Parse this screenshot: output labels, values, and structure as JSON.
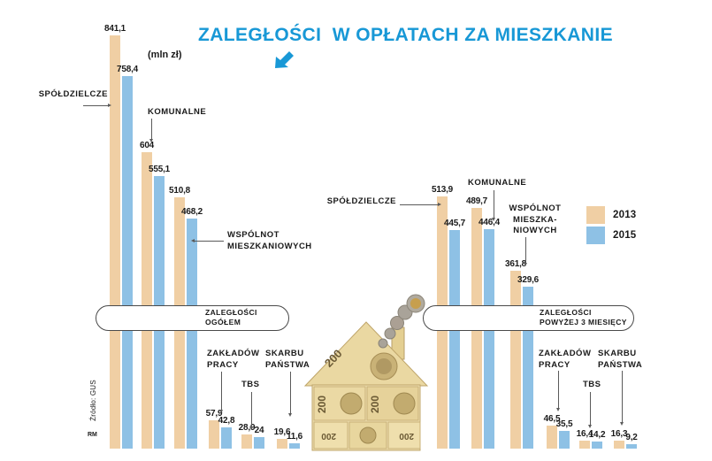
{
  "title": "ZALEGŁOŚCI  W OPŁATACH ZA MIESZKANIE",
  "unit_label": "(mln zł)",
  "source_label": "Źródło: GUS",
  "credit_label": "RM",
  "colors": {
    "accent_blue": "#1898D6",
    "bar_2013": "#F0CFA4",
    "bar_2015": "#8EC1E5",
    "pointer_line": "#5a5a5a"
  },
  "legend": {
    "items": [
      {
        "label": "2013",
        "color": "#F0CFA4"
      },
      {
        "label": "2015",
        "color": "#8EC1E5"
      }
    ]
  },
  "chart_data": {
    "type": "bar",
    "unit": "mln zł",
    "series": [
      "2013",
      "2015"
    ],
    "ylim": [
      0,
      850
    ],
    "grid": false,
    "legend_position": "right",
    "groups": [
      {
        "name": "ZALEGŁOŚCI OGÓŁEM",
        "pill_lines": [
          "ZALEGŁOŚCI",
          "OGÓŁEM"
        ],
        "bars": [
          {
            "category": "SPÓŁDZIELCZE",
            "label_lines": [
              "SPÓŁDZIELCZE"
            ],
            "values": [
              841.1,
              758.4
            ],
            "value_labels": [
              "841,1",
              "758,4"
            ]
          },
          {
            "category": "KOMUNALNE",
            "label_lines": [
              "KOMUNALNE"
            ],
            "values": [
              604,
              555.1
            ],
            "value_labels": [
              "604",
              "555,1"
            ]
          },
          {
            "category": "WSPÓLNOT MIESZKANIOWYCH",
            "label_lines": [
              "WSPÓLNOT",
              "MIESZKANIOWYCH"
            ],
            "values": [
              510.8,
              468.2
            ],
            "value_labels": [
              "510,8",
              "468,2"
            ]
          },
          {
            "category": "ZAKŁADÓW PRACY",
            "label_lines": [
              "ZAKŁADÓW",
              "PRACY"
            ],
            "values": [
              57.9,
              42.8
            ],
            "value_labels": [
              "57,9",
              "42,8"
            ]
          },
          {
            "category": "TBS",
            "label_lines": [
              "TBS"
            ],
            "values": [
              28.9,
              24
            ],
            "value_labels": [
              "28,9",
              "24"
            ]
          },
          {
            "category": "SKARBU PAŃSTWA",
            "label_lines": [
              "SKARBU",
              "PAŃSTWA"
            ],
            "values": [
              19.6,
              11.6
            ],
            "value_labels": [
              "19,6",
              "11,6"
            ]
          }
        ]
      },
      {
        "name": "ZALEGŁOŚCI POWYŻEJ 3 MIESIĘCY",
        "pill_lines": [
          "ZALEGŁOŚCI",
          "POWYŻEJ 3 MIESIĘCY"
        ],
        "bars": [
          {
            "category": "SPÓŁDZIELCZE",
            "label_lines": [
              "SPÓŁDZIELCZE"
            ],
            "values": [
              513.9,
              445.7
            ],
            "value_labels": [
              "513,9",
              "445,7"
            ]
          },
          {
            "category": "KOMUNALNE",
            "label_lines": [
              "KOMUNALNE"
            ],
            "values": [
              489.7,
              446.4
            ],
            "value_labels": [
              "489,7",
              "446,4"
            ]
          },
          {
            "category": "WSPÓLNOT MIESZKANIOWYCH",
            "label_lines": [
              "WSPÓLNOT",
              "MIESZKA-",
              "NIOWYCH"
            ],
            "values": [
              361.8,
              329.6
            ],
            "value_labels": [
              "361,8",
              "329,6"
            ]
          },
          {
            "category": "ZAKŁADÓW PRACY",
            "label_lines": [
              "ZAKŁADÓW",
              "PRACY"
            ],
            "values": [
              46.5,
              35.5
            ],
            "value_labels": [
              "46,5",
              "35,5"
            ]
          },
          {
            "category": "TBS",
            "label_lines": [
              "TBS"
            ],
            "values": [
              16.4,
              14.2
            ],
            "value_labels": [
              "16,4",
              "14,2"
            ]
          },
          {
            "category": "SKARBU PAŃSTWA",
            "label_lines": [
              "SKARBU",
              "PAŃSTWA"
            ],
            "values": [
              16.3,
              9.2
            ],
            "value_labels": [
              "16,3",
              "9,2"
            ]
          }
        ]
      }
    ]
  },
  "illustration": {
    "description": "house built from 200 zł banknotes with a trail of coins",
    "banknote_value": "200"
  }
}
